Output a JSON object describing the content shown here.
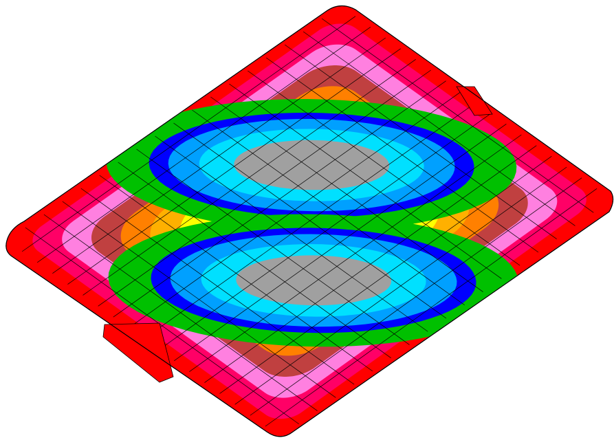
{
  "view": {
    "background": "#ffffff",
    "edge_color": "#000000"
  },
  "contour_colors": [
    "#ff0000",
    "#ff0066",
    "#ff80e0",
    "#c04040",
    "#ff8000",
    "#ffb000",
    "#ffff00",
    "#80ff00",
    "#00c000",
    "#0000ff",
    "#00a0ff",
    "#00e0ff",
    "#a0a0a0"
  ]
}
